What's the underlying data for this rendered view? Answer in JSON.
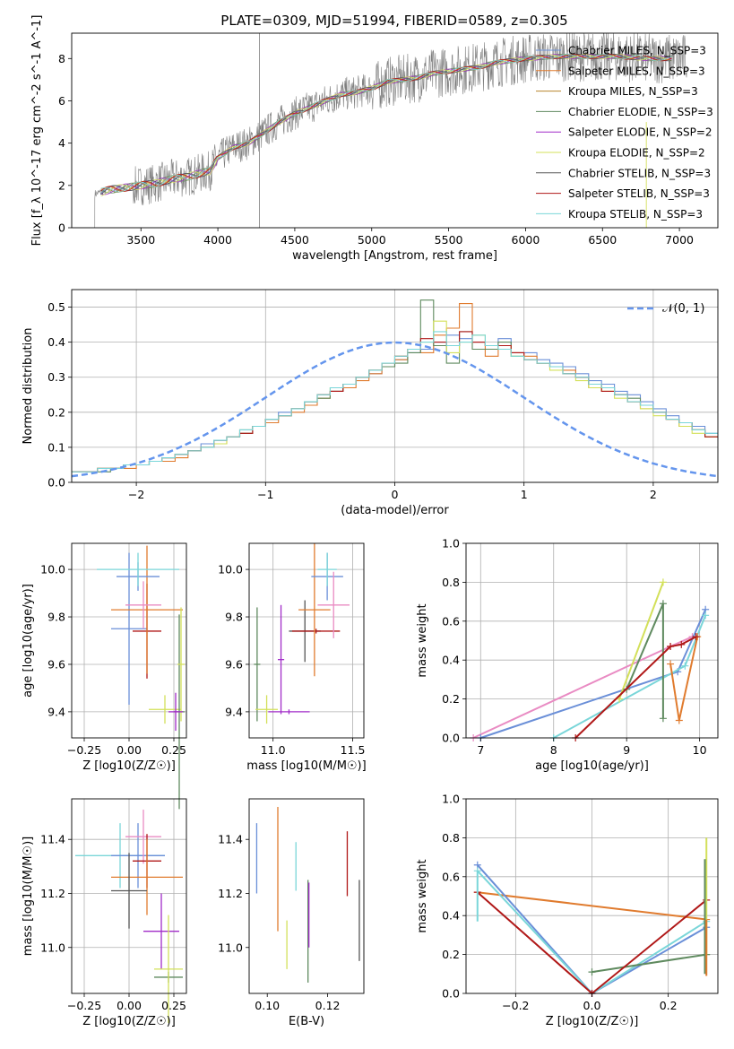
{
  "figure": {
    "title": "PLATE=0309, MJD=51994, FIBERID=0589, z=0.305"
  },
  "colors": {
    "chabrier_miles": "#6a8fd8",
    "salpeter_miles": "#e07b2e",
    "kroupa_miles": "#b8862b",
    "chabrier_elodie": "#5f8a5f",
    "salpeter_elodie": "#a12cc8",
    "kroupa_elodie": "#d3e05a",
    "chabrier_stelib": "#555555",
    "salpeter_stelib": "#b01818",
    "kroupa_stelib": "#7ad6d9",
    "pink": "#e98bc3",
    "data": "#7f7f7f",
    "gaussian": "#6495ed",
    "grid": "#b0b0b0"
  },
  "chart_data": [
    {
      "id": "spectrum",
      "type": "line",
      "title": "PLATE=0309, MJD=51994, FIBERID=0589, z=0.305",
      "xlabel": "wavelength [Angstrom, rest frame]",
      "ylabel": "Flux [f_λ 10^-17 erg cm^-2 s^-1 A^-1]",
      "xlim": [
        3050,
        7250
      ],
      "ylim": [
        0,
        9.2
      ],
      "grid": false,
      "xticks": [
        3500,
        4000,
        4500,
        5000,
        5500,
        6000,
        6500,
        7000
      ],
      "yticks": [
        0,
        2,
        4,
        6,
        8
      ],
      "continuum": {
        "x": [
          3200,
          3250,
          3300,
          3400,
          3500,
          3600,
          3700,
          3800,
          3900,
          3950,
          4000,
          4100,
          4200,
          4300,
          4400,
          4500,
          4600,
          4700,
          4800,
          4900,
          5000,
          5100,
          5200,
          5300,
          5400,
          5500,
          5600,
          5700,
          5800,
          5900,
          6000,
          6200,
          6400,
          6600,
          6800,
          7000
        ],
        "y": [
          1.6,
          1.7,
          1.8,
          1.9,
          2.0,
          2.1,
          2.3,
          2.4,
          2.6,
          2.7,
          3.3,
          3.8,
          4.0,
          4.5,
          5.0,
          5.4,
          5.7,
          6.0,
          6.3,
          6.4,
          6.6,
          6.9,
          7.0,
          7.1,
          7.3,
          7.4,
          7.5,
          7.6,
          7.8,
          7.9,
          8.0,
          8.1,
          8.1,
          8.1,
          8.0,
          8.0
        ]
      },
      "legend": {
        "location": "upper right",
        "entries": [
          {
            "label": "Chabrier MILES, N_SSP=3",
            "color": "chabrier_miles"
          },
          {
            "label": "Salpeter MILES, N_SSP=3",
            "color": "salpeter_miles"
          },
          {
            "label": "Kroupa MILES, N_SSP=3",
            "color": "kroupa_miles"
          },
          {
            "label": "Chabrier ELODIE, N_SSP=3",
            "color": "chabrier_elodie"
          },
          {
            "label": "Salpeter ELODIE, N_SSP=2",
            "color": "salpeter_elodie"
          },
          {
            "label": "Kroupa ELODIE, N_SSP=2",
            "color": "kroupa_elodie"
          },
          {
            "label": "Chabrier STELIB, N_SSP=3",
            "color": "chabrier_stelib"
          },
          {
            "label": "Salpeter STELIB, N_SSP=3",
            "color": "salpeter_stelib"
          },
          {
            "label": "Kroupa STELIB, N_SSP=3",
            "color": "kroupa_stelib"
          }
        ]
      }
    },
    {
      "id": "residuals",
      "type": "histogram",
      "xlabel": "(data-model)/error",
      "ylabel": "Normed distribution",
      "xlim": [
        -2.5,
        2.5
      ],
      "ylim": [
        0,
        0.55
      ],
      "grid": true,
      "xticks": [
        -2,
        -1,
        0,
        1,
        2
      ],
      "yticks": [
        0.0,
        0.1,
        0.2,
        0.3,
        0.4,
        0.5
      ],
      "bin_width": 0.1,
      "gaussian": {
        "label": "𝒩(0, 1)",
        "mu": 0,
        "sigma": 1,
        "legend_location": "upper right"
      },
      "bin_start": -2.5,
      "series_heights": {
        "chabrier_miles": [
          0.03,
          0.03,
          0.04,
          0.04,
          0.05,
          0.05,
          0.06,
          0.07,
          0.08,
          0.09,
          0.11,
          0.12,
          0.13,
          0.15,
          0.16,
          0.18,
          0.2,
          0.21,
          0.23,
          0.25,
          0.26,
          0.28,
          0.3,
          0.31,
          0.33,
          0.35,
          0.37,
          0.38,
          0.4,
          0.42,
          0.41,
          0.4,
          0.39,
          0.41,
          0.37,
          0.37,
          0.35,
          0.34,
          0.33,
          0.31,
          0.29,
          0.28,
          0.26,
          0.25,
          0.23,
          0.21,
          0.19,
          0.17,
          0.16,
          0.14
        ],
        "salpeter_miles": [
          0.03,
          0.03,
          0.04,
          0.04,
          0.04,
          0.05,
          0.06,
          0.06,
          0.07,
          0.09,
          0.1,
          0.11,
          0.13,
          0.14,
          0.16,
          0.17,
          0.19,
          0.2,
          0.22,
          0.24,
          0.26,
          0.27,
          0.29,
          0.31,
          0.33,
          0.35,
          0.38,
          0.37,
          0.42,
          0.44,
          0.51,
          0.4,
          0.36,
          0.39,
          0.37,
          0.36,
          0.34,
          0.33,
          0.32,
          0.3,
          0.27,
          0.26,
          0.25,
          0.23,
          0.21,
          0.2,
          0.18,
          0.16,
          0.15,
          0.13
        ],
        "chabrier_elodie": [
          0.03,
          0.03,
          0.03,
          0.04,
          0.05,
          0.05,
          0.06,
          0.07,
          0.08,
          0.09,
          0.1,
          0.12,
          0.13,
          0.14,
          0.16,
          0.18,
          0.19,
          0.21,
          0.23,
          0.24,
          0.26,
          0.28,
          0.3,
          0.32,
          0.33,
          0.34,
          0.37,
          0.52,
          0.39,
          0.34,
          0.43,
          0.38,
          0.38,
          0.4,
          0.36,
          0.35,
          0.34,
          0.33,
          0.31,
          0.3,
          0.28,
          0.27,
          0.25,
          0.24,
          0.22,
          0.2,
          0.18,
          0.17,
          0.15,
          0.13
        ],
        "kroupa_elodie": [
          0.03,
          0.03,
          0.04,
          0.04,
          0.05,
          0.05,
          0.06,
          0.07,
          0.08,
          0.09,
          0.1,
          0.11,
          0.13,
          0.15,
          0.16,
          0.18,
          0.19,
          0.21,
          0.23,
          0.25,
          0.27,
          0.28,
          0.3,
          0.32,
          0.34,
          0.36,
          0.38,
          0.4,
          0.46,
          0.37,
          0.4,
          0.42,
          0.39,
          0.39,
          0.36,
          0.35,
          0.34,
          0.32,
          0.31,
          0.29,
          0.27,
          0.26,
          0.24,
          0.23,
          0.21,
          0.19,
          0.18,
          0.16,
          0.14,
          0.13
        ],
        "salpeter_stelib": [
          0.03,
          0.03,
          0.04,
          0.04,
          0.05,
          0.05,
          0.06,
          0.07,
          0.08,
          0.09,
          0.1,
          0.12,
          0.13,
          0.14,
          0.16,
          0.18,
          0.19,
          0.21,
          0.23,
          0.25,
          0.26,
          0.28,
          0.3,
          0.32,
          0.34,
          0.36,
          0.38,
          0.41,
          0.4,
          0.39,
          0.43,
          0.4,
          0.39,
          0.39,
          0.37,
          0.35,
          0.34,
          0.33,
          0.31,
          0.3,
          0.28,
          0.26,
          0.25,
          0.23,
          0.22,
          0.2,
          0.18,
          0.17,
          0.15,
          0.13
        ],
        "kroupa_stelib": [
          0.03,
          0.03,
          0.04,
          0.04,
          0.05,
          0.05,
          0.06,
          0.07,
          0.08,
          0.09,
          0.1,
          0.12,
          0.13,
          0.15,
          0.16,
          0.18,
          0.19,
          0.21,
          0.23,
          0.25,
          0.27,
          0.28,
          0.3,
          0.32,
          0.34,
          0.36,
          0.38,
          0.4,
          0.43,
          0.39,
          0.4,
          0.42,
          0.39,
          0.38,
          0.36,
          0.35,
          0.34,
          0.33,
          0.31,
          0.3,
          0.28,
          0.27,
          0.25,
          0.23,
          0.22,
          0.2,
          0.18,
          0.17,
          0.15,
          0.14
        ]
      }
    },
    {
      "id": "age_vs_z",
      "type": "scatter",
      "xlabel": "Z [log10(Z/Z☉)]",
      "ylabel": "age [log10(age/yr)]",
      "xlim": [
        -0.32,
        0.32
      ],
      "ylim": [
        9.29,
        10.11
      ],
      "grid": true,
      "xticks": [
        -0.25,
        0.0,
        0.25
      ],
      "yticks": [
        9.4,
        9.6,
        9.8,
        10.0
      ],
      "points": [
        {
          "x": 0.0,
          "y": 9.75,
          "xerr": 0.1,
          "yerr": 0.32,
          "color": "chabrier_miles"
        },
        {
          "x": 0.1,
          "y": 9.74,
          "xerr": 0.08,
          "yerr": 0.2,
          "color": "salpeter_stelib"
        },
        {
          "x": 0.1,
          "y": 9.83,
          "xerr": 0.2,
          "yerr": 0.27,
          "color": "salpeter_miles"
        },
        {
          "x": 0.05,
          "y": 9.97,
          "xerr": 0.12,
          "yerr": 0.06,
          "color": "chabrier_miles"
        },
        {
          "x": 0.05,
          "y": 10.0,
          "xerr": 0.23,
          "yerr": 0.07,
          "color": "kroupa_stelib"
        },
        {
          "x": 0.08,
          "y": 9.85,
          "xerr": 0.1,
          "yerr": 0.1,
          "color": "pink"
        },
        {
          "x": 0.2,
          "y": 9.41,
          "xerr": 0.09,
          "yerr": 0.06,
          "color": "kroupa_elodie"
        },
        {
          "x": 0.28,
          "y": 9.4,
          "xerr": 0.03,
          "yerr": 0.41,
          "color": "chabrier_elodie"
        },
        {
          "x": 0.29,
          "y": 9.6,
          "xerr": 0.02,
          "yerr": 0.24,
          "color": "kroupa_elodie"
        },
        {
          "x": 0.26,
          "y": 9.4,
          "xerr": 0.04,
          "yerr": 0.08,
          "color": "salpeter_elodie"
        }
      ]
    },
    {
      "id": "age_vs_mass",
      "type": "scatter",
      "xlabel": "mass [log10(M/M☉)]",
      "xlim": [
        10.85,
        11.57
      ],
      "ylim": [
        9.29,
        10.11
      ],
      "grid": true,
      "xticks": [
        11.0,
        11.5
      ],
      "yticks": [
        9.4,
        9.6,
        9.8,
        10.0
      ],
      "points": [
        {
          "x": 10.9,
          "y": 9.6,
          "xerr": 0.02,
          "yerr": 0.24,
          "color": "chabrier_elodie"
        },
        {
          "x": 10.96,
          "y": 9.41,
          "xerr": 0.07,
          "yerr": 0.06,
          "color": "kroupa_elodie"
        },
        {
          "x": 11.05,
          "y": 9.62,
          "xerr": 0.02,
          "yerr": 0.23,
          "color": "salpeter_elodie"
        },
        {
          "x": 11.1,
          "y": 9.4,
          "xerr": 0.13,
          "yerr": 0.01,
          "color": "salpeter_elodie"
        },
        {
          "x": 11.2,
          "y": 9.74,
          "xerr": 0.1,
          "yerr": 0.13,
          "color": "chabrier_stelib"
        },
        {
          "x": 11.27,
          "y": 9.74,
          "xerr": 0.15,
          "yerr": 0.01,
          "color": "salpeter_stelib"
        },
        {
          "x": 11.26,
          "y": 9.83,
          "xerr": 0.1,
          "yerr": 0.28,
          "color": "salpeter_miles"
        },
        {
          "x": 11.34,
          "y": 9.97,
          "xerr": 0.1,
          "yerr": 0.1,
          "color": "chabrier_miles"
        },
        {
          "x": 11.34,
          "y": 10.0,
          "xerr": 0.06,
          "yerr": 0.07,
          "color": "kroupa_stelib"
        },
        {
          "x": 11.38,
          "y": 9.85,
          "xerr": 0.1,
          "yerr": 0.14,
          "color": "pink"
        }
      ]
    },
    {
      "id": "weight_vs_age",
      "type": "line",
      "xlabel": "age [log10(age/yr)]",
      "ylabel": "mass weight",
      "xlim": [
        6.8,
        10.25
      ],
      "ylim": [
        0,
        1.0
      ],
      "grid": true,
      "xticks": [
        7,
        8,
        9,
        10
      ],
      "yticks": [
        0.0,
        0.2,
        0.4,
        0.6,
        0.8,
        1.0
      ],
      "series": [
        {
          "color": "pink",
          "x": [
            6.9,
            9.6,
            9.9
          ],
          "y": [
            0.0,
            0.47,
            0.52
          ]
        },
        {
          "color": "chabrier_miles",
          "x": [
            7.0,
            9.7,
            10.08
          ],
          "y": [
            0.0,
            0.34,
            0.66
          ]
        },
        {
          "color": "kroupa_stelib",
          "x": [
            8.0,
            9.8,
            10.08
          ],
          "y": [
            0.0,
            0.37,
            0.63
          ]
        },
        {
          "color": "kroupa_elodie",
          "x": [
            8.9,
            9.5
          ],
          "y": [
            0.2,
            0.8
          ]
        },
        {
          "color": "chabrier_elodie",
          "x": [
            9.0,
            9.5,
            9.5
          ],
          "y": [
            0.25,
            0.69,
            0.1
          ]
        },
        {
          "color": "salpeter_miles",
          "x": [
            9.6,
            9.72,
            9.97
          ],
          "y": [
            0.38,
            0.09,
            0.52
          ]
        },
        {
          "color": "salpeter_stelib",
          "x": [
            8.3,
            9.6,
            9.75,
            9.95
          ],
          "y": [
            0.0,
            0.47,
            0.48,
            0.52
          ]
        }
      ]
    },
    {
      "id": "mass_vs_z",
      "type": "scatter",
      "xlabel": "Z [log10(Z/Z☉)]",
      "ylabel": "mass [log10(M/M☉)]",
      "xlim": [
        -0.32,
        0.32
      ],
      "ylim": [
        10.83,
        11.55
      ],
      "grid": true,
      "xticks": [
        -0.25,
        0.0,
        0.25
      ],
      "yticks": [
        11.0,
        11.2,
        11.4
      ],
      "points": [
        {
          "x": -0.05,
          "y": 11.34,
          "xerr": 0.25,
          "yerr": 0.12,
          "color": "kroupa_stelib"
        },
        {
          "x": 0.05,
          "y": 11.34,
          "xerr": 0.15,
          "yerr": 0.12,
          "color": "chabrier_miles"
        },
        {
          "x": 0.08,
          "y": 11.41,
          "xerr": 0.1,
          "yerr": 0.1,
          "color": "pink"
        },
        {
          "x": 0.1,
          "y": 11.32,
          "xerr": 0.08,
          "yerr": 0.1,
          "color": "salpeter_stelib"
        },
        {
          "x": 0.1,
          "y": 11.26,
          "xerr": 0.2,
          "yerr": 0.14,
          "color": "salpeter_miles"
        },
        {
          "x": 0.0,
          "y": 11.21,
          "xerr": 0.1,
          "yerr": 0.14,
          "color": "chabrier_stelib"
        },
        {
          "x": 0.18,
          "y": 11.06,
          "xerr": 0.1,
          "yerr": 0.14,
          "color": "salpeter_elodie"
        },
        {
          "x": 0.22,
          "y": 10.89,
          "xerr": 0.08,
          "yerr": 0.02,
          "color": "chabrier_elodie"
        },
        {
          "x": 0.22,
          "y": 10.92,
          "xerr": 0.08,
          "yerr": 0.2,
          "color": "kroupa_elodie"
        }
      ]
    },
    {
      "id": "mass_vs_ebv",
      "type": "scatter",
      "xlabel": "E(B-V)",
      "xlim": [
        0.094,
        0.132
      ],
      "ylim": [
        10.83,
        11.55
      ],
      "grid": false,
      "xticks": [
        0.1,
        0.12
      ],
      "yticks": [
        11.0,
        11.2,
        11.4
      ],
      "points": [
        {
          "x": 0.0965,
          "y": 11.33,
          "yerr": 0.13,
          "color": "chabrier_miles"
        },
        {
          "x": 0.1035,
          "y": 11.29,
          "yerr": 0.23,
          "color": "salpeter_miles"
        },
        {
          "x": 0.1065,
          "y": 11.01,
          "yerr": 0.09,
          "color": "kroupa_elodie"
        },
        {
          "x": 0.1095,
          "y": 11.3,
          "yerr": 0.09,
          "color": "kroupa_stelib"
        },
        {
          "x": 0.1135,
          "y": 11.06,
          "yerr": 0.19,
          "color": "chabrier_elodie"
        },
        {
          "x": 0.1138,
          "y": 11.12,
          "yerr": 0.12,
          "color": "salpeter_elodie"
        },
        {
          "x": 0.1265,
          "y": 11.31,
          "yerr": 0.12,
          "color": "salpeter_stelib"
        },
        {
          "x": 0.1305,
          "y": 11.1,
          "yerr": 0.15,
          "color": "chabrier_stelib"
        }
      ]
    },
    {
      "id": "weight_vs_z",
      "type": "line",
      "xlabel": "Z [log10(Z/Z☉)]",
      "ylabel": "mass weight",
      "xlim": [
        -0.33,
        0.33
      ],
      "ylim": [
        0,
        1.0
      ],
      "grid": true,
      "xticks": [
        -0.2,
        0.0,
        0.2
      ],
      "yticks": [
        0.0,
        0.2,
        0.4,
        0.6,
        0.8,
        1.0
      ],
      "series": [
        {
          "color": "salpeter_miles",
          "x": [
            -0.3,
            0.3
          ],
          "y": [
            0.52,
            0.38
          ]
        },
        {
          "color": "chabrier_miles",
          "x": [
            -0.3,
            0.0,
            0.3
          ],
          "y": [
            0.66,
            0.0,
            0.34
          ]
        },
        {
          "color": "kroupa_stelib",
          "x": [
            -0.3,
            0.0,
            0.3
          ],
          "y": [
            0.63,
            0.0,
            0.37
          ]
        },
        {
          "color": "chabrier_elodie",
          "x": [
            0.0,
            0.3
          ],
          "y": [
            0.11,
            0.2
          ]
        },
        {
          "color": "salpeter_stelib",
          "x": [
            -0.3,
            0.0,
            0.3
          ],
          "y": [
            0.52,
            0.0,
            0.48
          ]
        }
      ],
      "verticals": [
        {
          "color": "kroupa_elodie",
          "x": 0.3,
          "y": [
            0.2,
            0.8
          ]
        },
        {
          "color": "chabrier_elodie",
          "x": 0.296,
          "y": [
            0.1,
            0.69
          ]
        },
        {
          "color": "salpeter_miles",
          "x": 0.3,
          "y": [
            0.09,
            0.38
          ]
        },
        {
          "color": "kroupa_stelib",
          "x": -0.3,
          "y": [
            0.37,
            0.63
          ]
        }
      ]
    }
  ]
}
